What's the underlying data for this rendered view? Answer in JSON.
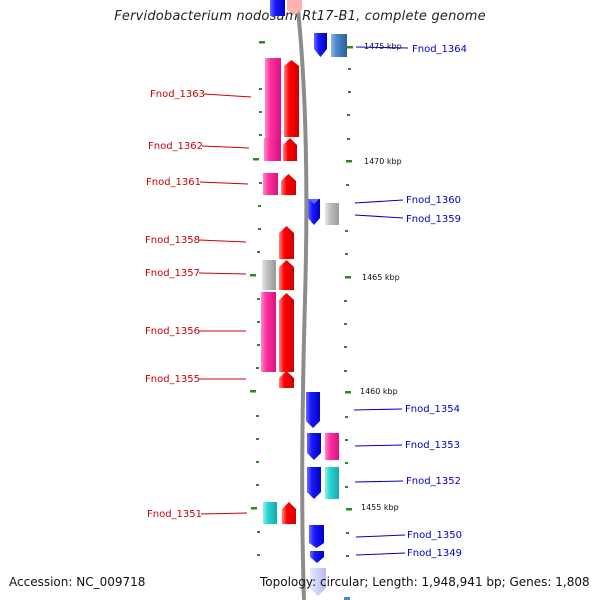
{
  "title": "Fervidobacterium nodosum Rt17-B1, complete genome",
  "footer": {
    "accession": "Accession: NC_009718",
    "topology": "Topology: circular; Length: 1,948,941 bp; Genes: 1,808"
  },
  "colors": {
    "red": "#ff0000",
    "pink": "#ff2fa0",
    "blue": "#1a1aff",
    "gray": "#bdbdbd",
    "cyan": "#2ad4d4",
    "steelblue": "#4a86c8",
    "tick": "#2e8b22",
    "backbone": "#8c8c8c"
  },
  "kbp_marks": [
    "1475 kbp",
    "1470 kbp",
    "1465 kbp",
    "1460 kbp",
    "1455 kbp"
  ],
  "genes_left": [
    "Fnod_1363",
    "Fnod_1362",
    "Fnod_1361",
    "Fnod_1358",
    "Fnod_1357",
    "Fnod_1356",
    "Fnod_1355",
    "Fnod_1351"
  ],
  "genes_right": [
    "Fnod_1364",
    "Fnod_1360",
    "Fnod_1359",
    "Fnod_1354",
    "Fnod_1353",
    "Fnod_1352",
    "Fnod_1350",
    "Fnod_1349"
  ]
}
